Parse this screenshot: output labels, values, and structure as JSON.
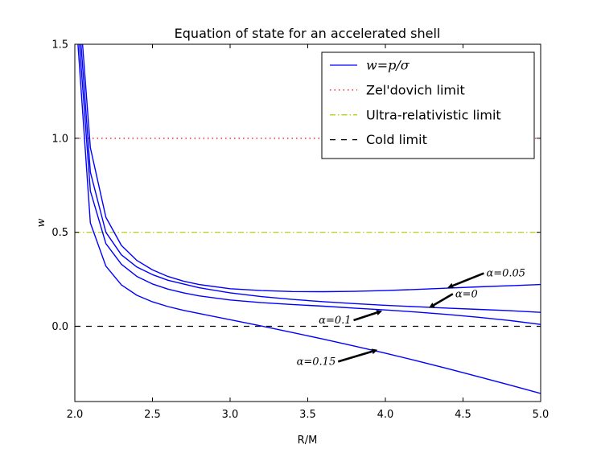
{
  "chart_data": {
    "type": "line",
    "title": "Equation of state for an accelerated shell",
    "xlabel": "R/M",
    "ylabel": "w",
    "xlim": [
      2.0,
      5.0
    ],
    "ylim": [
      -0.4,
      1.5
    ],
    "xticks": [
      2.0,
      2.5,
      3.0,
      3.5,
      4.0,
      4.5,
      5.0
    ],
    "yticks": [
      0.0,
      0.5,
      1.0,
      1.5
    ],
    "xtick_labels": [
      "2.0",
      "2.5",
      "3.0",
      "3.5",
      "4.0",
      "4.5",
      "5.0"
    ],
    "ytick_labels": [
      "0.0",
      "0.5",
      "1.0",
      "1.5"
    ],
    "legend": {
      "placement": "top-right",
      "entries": [
        {
          "label": "w=p/σ",
          "style": "solid",
          "color": "#0000ff"
        },
        {
          "label": "Zel'dovich limit",
          "style": "dotted",
          "color": "#ff0000"
        },
        {
          "label": "Ultra-relativistic limit",
          "style": "dashdot",
          "color": "#aacc00"
        },
        {
          "label": "Cold limit",
          "style": "dashed",
          "color": "#000000"
        }
      ]
    },
    "reference_lines": [
      {
        "name": "Zel'dovich limit",
        "y": 1.0,
        "color": "#ff0000",
        "style": "dotted"
      },
      {
        "name": "Ultra-relativistic limit",
        "y": 0.5,
        "color": "#aacc00",
        "style": "dashdot"
      },
      {
        "name": "Cold limit",
        "y": 0.0,
        "color": "#000000",
        "style": "dashed"
      }
    ],
    "series": [
      {
        "name": "α=0.05",
        "color": "#0000ff",
        "x": [
          2.05,
          2.1,
          2.2,
          2.3,
          2.4,
          2.5,
          2.6,
          2.7,
          2.8,
          3.0,
          3.2,
          3.4,
          3.6,
          3.8,
          4.0,
          4.2,
          4.4,
          4.6,
          4.8,
          5.0
        ],
        "y": [
          1.5,
          0.95,
          0.58,
          0.43,
          0.35,
          0.3,
          0.265,
          0.24,
          0.222,
          0.2,
          0.19,
          0.185,
          0.184,
          0.186,
          0.19,
          0.196,
          0.203,
          0.21,
          0.216,
          0.222
        ]
      },
      {
        "name": "α=0",
        "color": "#0000ff",
        "x": [
          2.04,
          2.1,
          2.2,
          2.3,
          2.4,
          2.5,
          2.6,
          2.7,
          2.8,
          3.0,
          3.2,
          3.4,
          3.6,
          3.8,
          4.0,
          4.2,
          4.4,
          4.6,
          4.8,
          5.0
        ],
        "y": [
          1.5,
          0.82,
          0.5,
          0.38,
          0.315,
          0.275,
          0.245,
          0.225,
          0.205,
          0.178,
          0.158,
          0.143,
          0.131,
          0.121,
          0.112,
          0.104,
          0.097,
          0.09,
          0.083,
          0.074
        ]
      },
      {
        "name": "α=0.1",
        "color": "#0000ff",
        "x": [
          2.03,
          2.1,
          2.2,
          2.3,
          2.4,
          2.5,
          2.6,
          2.7,
          2.8,
          3.0,
          3.2,
          3.4,
          3.6,
          3.8,
          4.0,
          4.2,
          4.4,
          4.6,
          4.8,
          5.0
        ],
        "y": [
          1.5,
          0.72,
          0.44,
          0.33,
          0.265,
          0.225,
          0.198,
          0.178,
          0.162,
          0.14,
          0.126,
          0.116,
          0.107,
          0.097,
          0.087,
          0.076,
          0.063,
          0.048,
          0.031,
          0.01
        ]
      },
      {
        "name": "α=0.15",
        "color": "#0000ff",
        "x": [
          2.02,
          2.1,
          2.2,
          2.3,
          2.4,
          2.5,
          2.6,
          2.7,
          2.8,
          3.0,
          3.2,
          3.4,
          3.6,
          3.8,
          4.0,
          4.2,
          4.4,
          4.6,
          4.8,
          5.0
        ],
        "y": [
          1.5,
          0.55,
          0.32,
          0.22,
          0.165,
          0.13,
          0.105,
          0.085,
          0.068,
          0.035,
          0.002,
          -0.033,
          -0.068,
          -0.105,
          -0.143,
          -0.183,
          -0.225,
          -0.268,
          -0.312,
          -0.357
        ]
      }
    ],
    "annotations": [
      {
        "text": "α=0.05",
        "pos": [
          4.65,
          0.265
        ],
        "arrow_to": [
          4.4,
          0.205
        ],
        "align": "start"
      },
      {
        "text": "α=0",
        "pos": [
          4.45,
          0.155
        ],
        "arrow_to": [
          4.28,
          0.098
        ],
        "align": "start"
      },
      {
        "text": "α=0.1",
        "pos": [
          3.78,
          0.015
        ],
        "arrow_to": [
          3.98,
          0.082
        ],
        "align": "end"
      },
      {
        "text": "α=0.15",
        "pos": [
          3.68,
          -0.205
        ],
        "arrow_to": [
          3.95,
          -0.125
        ],
        "align": "end"
      }
    ]
  }
}
